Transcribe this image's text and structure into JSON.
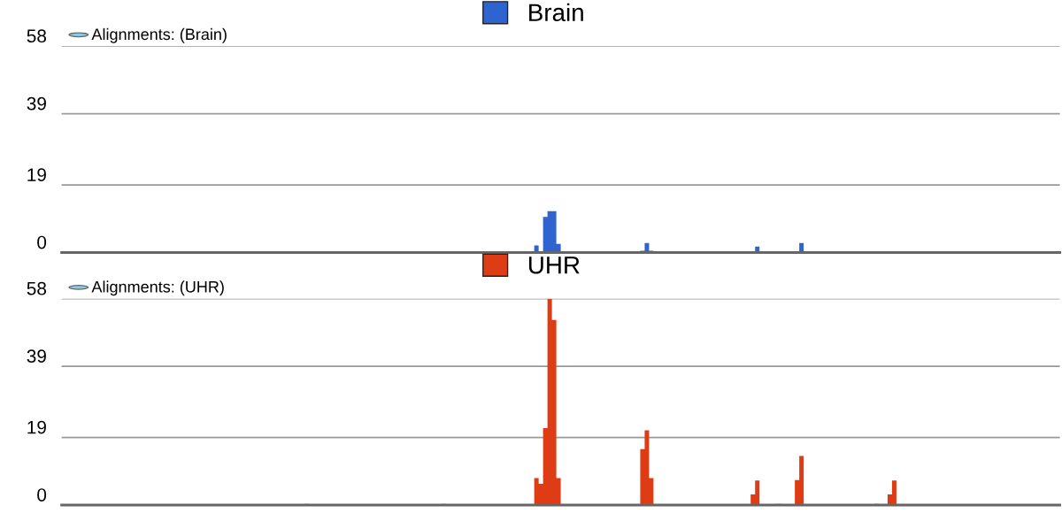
{
  "chart_data": [
    {
      "type": "area",
      "title": "Alignments: (Brain)",
      "categories": [
        null,
        null,
        null,
        null,
        null,
        null,
        null,
        null,
        null,
        null,
        null,
        null,
        null,
        null,
        null,
        null,
        null,
        null,
        null,
        null,
        null,
        null,
        null,
        null,
        null,
        null,
        null,
        null,
        null,
        null,
        null,
        null,
        null,
        null,
        null,
        null,
        null,
        null,
        null,
        null,
        null,
        null,
        null,
        null,
        null,
        null,
        null,
        null,
        null,
        null,
        null,
        null,
        null,
        null,
        null,
        null,
        null,
        null,
        null,
        null,
        null,
        null,
        null,
        null,
        null,
        null,
        null,
        null,
        null,
        null,
        null,
        null,
        null,
        null,
        null,
        null,
        null,
        null,
        null,
        null,
        null,
        null,
        null,
        null,
        null,
        null,
        null,
        null,
        null,
        null,
        null,
        null,
        null,
        null,
        null,
        null,
        null,
        null,
        null,
        null,
        null,
        null,
        null,
        null,
        null,
        null,
        null,
        null,
        null,
        null,
        null,
        null,
        null,
        null,
        null,
        null,
        null,
        null,
        null,
        null,
        null,
        null,
        null,
        null,
        null,
        null,
        null,
        null,
        null,
        null,
        null,
        null,
        null,
        null,
        null,
        null,
        null,
        null,
        null,
        null,
        null,
        null,
        null,
        null,
        null,
        null,
        null,
        null,
        null,
        null,
        null,
        null,
        null,
        null,
        null,
        null,
        null,
        null,
        null,
        null,
        null,
        null,
        null,
        null,
        null,
        null,
        null,
        null,
        null,
        null,
        null,
        null,
        null,
        null,
        null,
        null,
        null,
        null,
        null,
        null,
        null,
        null,
        null,
        null,
        null,
        null,
        null,
        null,
        null,
        null,
        null,
        null,
        null,
        null,
        null,
        null,
        null,
        null,
        null,
        null,
        null,
        null,
        null,
        null,
        null,
        null,
        null,
        null,
        null,
        null,
        null,
        null,
        null,
        null,
        null,
        null,
        null,
        null,
        null,
        null,
        null,
        null,
        null,
        null,
        null,
        null
      ],
      "series": [
        {
          "name": "Brain",
          "color": "#2f63cf",
          "values": [
            0,
            0,
            0,
            0,
            0,
            0,
            0,
            0,
            0,
            0,
            0,
            0,
            0,
            0,
            0,
            0,
            0,
            0,
            0,
            0,
            0,
            0,
            0,
            0,
            0,
            0,
            0,
            0,
            0,
            0,
            0,
            0,
            0,
            0,
            0,
            0,
            0,
            0,
            0,
            0,
            0,
            0,
            0,
            0,
            0,
            0,
            0,
            0,
            0,
            0,
            0,
            0,
            0,
            0,
            0,
            0,
            0,
            0,
            0,
            0,
            0,
            0,
            0,
            0,
            0,
            0,
            0,
            0,
            0,
            0,
            0,
            0,
            0,
            0,
            0,
            0,
            0,
            0,
            0,
            0,
            0,
            0,
            0,
            0,
            0,
            0,
            0,
            0,
            0,
            0,
            0,
            0,
            0,
            0,
            0,
            0,
            0,
            0,
            0,
            0,
            0,
            0,
            0,
            0,
            0,
            0,
            0,
            2,
            0,
            10,
            11.6,
            11.6,
            2.4,
            0,
            0,
            0,
            0,
            0,
            0,
            0,
            0,
            0,
            0,
            0,
            0,
            0,
            0,
            0,
            0,
            0,
            0,
            0.5,
            2.7,
            0.5,
            0,
            0,
            0,
            0,
            0,
            0,
            0,
            0,
            0,
            0,
            0,
            0,
            0,
            0,
            0,
            0,
            0,
            0,
            0,
            0,
            0,
            0,
            0,
            1.7,
            0,
            0,
            0,
            0,
            0,
            0,
            0,
            0,
            0,
            2.7,
            0,
            0,
            0,
            0,
            0,
            0,
            0,
            0,
            0,
            0,
            0,
            0,
            0,
            0,
            0,
            0,
            0,
            0,
            0,
            0,
            0.3,
            0,
            0,
            0,
            0,
            0,
            0,
            0,
            0,
            0,
            0,
            0,
            0,
            0,
            0,
            0,
            0,
            0,
            0,
            0,
            0,
            0,
            0,
            0,
            0,
            0,
            0,
            0,
            0,
            0,
            0,
            0,
            0,
            0,
            0,
            0,
            0,
            0
          ]
        }
      ],
      "ylim": [
        0,
        58
      ],
      "yticks": [
        0,
        19,
        39,
        58
      ],
      "grid": "y",
      "legend": "top",
      "tick_labels": "y"
    },
    {
      "type": "area",
      "title": "Alignments: (UHR)",
      "categories": [
        null,
        null,
        null,
        null,
        null,
        null,
        null,
        null,
        null,
        null,
        null,
        null,
        null,
        null,
        null,
        null,
        null,
        null,
        null,
        null,
        null,
        null,
        null,
        null,
        null,
        null,
        null,
        null,
        null,
        null,
        null,
        null,
        null,
        null,
        null,
        null,
        null,
        null,
        null,
        null,
        null,
        null,
        null,
        null,
        null,
        null,
        null,
        null,
        null,
        null,
        null,
        null,
        null,
        null,
        null,
        null,
        null,
        null,
        null,
        null,
        null,
        null,
        null,
        null,
        null,
        null,
        null,
        null,
        null,
        null,
        null,
        null,
        null,
        null,
        null,
        null,
        null,
        null,
        null,
        null,
        null,
        null,
        null,
        null,
        null,
        null,
        null,
        null,
        null,
        null,
        null,
        null,
        null,
        null,
        null,
        null,
        null,
        null,
        null,
        null,
        null,
        null,
        null,
        null,
        null,
        null,
        null,
        null,
        null,
        null,
        null,
        null,
        null,
        null,
        null,
        null,
        null,
        null,
        null,
        null,
        null,
        null,
        null,
        null,
        null,
        null,
        null,
        null,
        null,
        null,
        null,
        null,
        null,
        null,
        null,
        null,
        null,
        null,
        null,
        null,
        null,
        null,
        null,
        null,
        null,
        null,
        null,
        null,
        null,
        null,
        null,
        null,
        null,
        null,
        null,
        null,
        null,
        null,
        null,
        null,
        null,
        null,
        null,
        null,
        null,
        null,
        null,
        null,
        null,
        null,
        null,
        null,
        null,
        null,
        null,
        null,
        null,
        null,
        null,
        null,
        null,
        null,
        null,
        null,
        null,
        null,
        null,
        null,
        null,
        null,
        null,
        null,
        null,
        null,
        null,
        null,
        null,
        null,
        null,
        null,
        null,
        null,
        null,
        null,
        null,
        null,
        null,
        null,
        null,
        null,
        null,
        null,
        null,
        null,
        null,
        null,
        null,
        null,
        null,
        null,
        null,
        null,
        null,
        null,
        null,
        null
      ],
      "series": [
        {
          "name": "UHR",
          "color": "#dd3c14",
          "values": [
            0,
            0,
            0,
            0,
            0,
            0,
            0,
            0,
            0,
            0,
            0,
            0,
            0,
            0,
            0,
            0,
            0,
            0,
            0,
            0,
            0,
            0,
            0,
            0,
            0,
            0,
            0,
            0,
            0,
            0,
            0,
            0,
            0,
            0,
            0,
            0,
            0,
            0,
            0,
            0,
            0,
            0,
            0,
            0,
            0,
            0,
            0,
            0,
            0,
            0,
            0,
            0,
            0,
            0,
            0,
            0.3,
            0,
            0,
            0,
            0,
            0,
            0,
            0,
            0,
            0,
            0,
            0,
            0,
            0,
            0,
            0,
            0,
            0,
            0,
            0,
            0,
            0,
            0,
            0,
            0,
            0,
            0,
            0,
            0,
            0,
            0,
            0.3,
            0,
            0,
            0,
            0,
            0,
            0,
            0,
            0,
            0,
            0,
            0,
            0,
            0,
            0,
            0,
            0,
            0,
            0,
            0,
            0,
            7.6,
            6,
            21.6,
            58,
            52,
            7.6,
            0,
            0,
            0,
            0,
            0,
            0,
            0,
            0,
            0,
            0,
            0,
            0,
            0,
            0,
            0,
            0,
            0,
            0,
            15.7,
            21,
            7.6,
            0,
            0,
            0,
            0,
            0,
            0,
            0,
            0,
            0,
            0,
            0,
            0,
            0,
            0,
            0,
            0,
            0,
            0,
            0,
            0,
            0,
            0,
            3,
            6.9,
            0,
            0,
            0,
            0,
            0.3,
            0,
            0,
            0,
            7,
            13.8,
            0,
            0,
            0,
            0,
            0,
            0,
            0,
            0,
            0,
            0,
            0,
            0,
            0,
            0,
            0,
            0,
            0.3,
            0,
            0,
            3,
            6.9,
            0,
            0,
            0,
            0,
            0,
            0,
            0,
            0,
            0,
            0,
            0,
            0,
            0,
            0,
            0,
            0,
            0,
            0,
            0,
            0,
            0,
            0,
            0,
            0,
            0,
            0,
            0,
            0,
            0,
            0,
            0,
            0,
            0,
            0,
            0,
            0,
            0
          ]
        }
      ],
      "ylim": [
        0,
        58
      ],
      "yticks": [
        0,
        19,
        39,
        58
      ],
      "grid": "y",
      "legend": "top",
      "tick_labels": "y"
    }
  ]
}
